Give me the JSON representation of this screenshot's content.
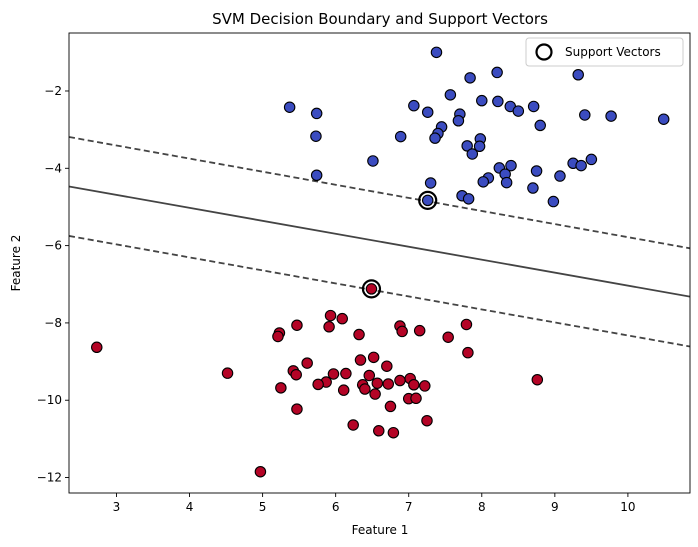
{
  "chart_data": {
    "type": "scatter",
    "title": "SVM Decision Boundary and Support Vectors",
    "xlabel": "Feature 1",
    "ylabel": "Feature 2",
    "xlim": [
      2.35,
      10.85
    ],
    "ylim": [
      -12.4,
      -0.5
    ],
    "xticks": [
      3,
      4,
      5,
      6,
      7,
      8,
      9,
      10
    ],
    "yticks": [
      -2,
      -4,
      -6,
      -8,
      -10,
      -12
    ],
    "grid": false,
    "legend": {
      "entries": [
        "Support Vectors"
      ],
      "placement": "top-right"
    },
    "colors": {
      "class_top": "#3b4cc0",
      "class_bottom": "#b40426",
      "boundary": "#444444",
      "edge": "#000000"
    },
    "boundary": {
      "x": [
        2.35,
        10.85
      ],
      "y": [
        -4.47,
        -7.32
      ]
    },
    "margin_upper": {
      "x": [
        2.35,
        10.85
      ],
      "y": [
        -3.19,
        -6.07
      ]
    },
    "margin_lower": {
      "x": [
        2.35,
        10.85
      ],
      "y": [
        -5.75,
        -8.61
      ]
    },
    "series": [
      {
        "color": "#3b4cc0",
        "points": [
          [
            7.38,
            -1.0
          ],
          [
            8.21,
            -1.52
          ],
          [
            9.32,
            -1.58
          ],
          [
            7.84,
            -1.66
          ],
          [
            7.57,
            -2.1
          ],
          [
            7.07,
            -2.38
          ],
          [
            8.0,
            -2.25
          ],
          [
            8.22,
            -2.27
          ],
          [
            8.39,
            -2.4
          ],
          [
            8.5,
            -2.52
          ],
          [
            8.71,
            -2.4
          ],
          [
            7.26,
            -2.55
          ],
          [
            7.7,
            -2.6
          ],
          [
            5.37,
            -2.42
          ],
          [
            5.74,
            -2.58
          ],
          [
            9.41,
            -2.62
          ],
          [
            9.77,
            -2.65
          ],
          [
            10.49,
            -2.73
          ],
          [
            7.68,
            -2.77
          ],
          [
            7.45,
            -2.93
          ],
          [
            8.8,
            -2.89
          ],
          [
            5.73,
            -3.17
          ],
          [
            6.89,
            -3.18
          ],
          [
            7.4,
            -3.1
          ],
          [
            7.36,
            -3.22
          ],
          [
            7.98,
            -3.24
          ],
          [
            7.97,
            -3.43
          ],
          [
            7.8,
            -3.42
          ],
          [
            7.87,
            -3.63
          ],
          [
            8.24,
            -3.99
          ],
          [
            8.32,
            -4.15
          ],
          [
            8.4,
            -3.93
          ],
          [
            8.75,
            -4.07
          ],
          [
            8.7,
            -4.51
          ],
          [
            9.25,
            -3.87
          ],
          [
            9.36,
            -3.93
          ],
          [
            9.5,
            -3.77
          ],
          [
            9.07,
            -4.2
          ],
          [
            8.09,
            -4.25
          ],
          [
            8.02,
            -4.35
          ],
          [
            8.34,
            -4.37
          ],
          [
            6.51,
            -3.81
          ],
          [
            5.74,
            -4.18
          ],
          [
            7.3,
            -4.38
          ],
          [
            7.73,
            -4.71
          ],
          [
            7.82,
            -4.79
          ],
          [
            8.98,
            -4.86
          ],
          [
            7.26,
            -4.83
          ]
        ]
      },
      {
        "color": "#b40426",
        "points": [
          [
            6.49,
            -7.12
          ],
          [
            5.93,
            -7.81
          ],
          [
            6.09,
            -7.89
          ],
          [
            5.91,
            -8.1
          ],
          [
            5.23,
            -8.26
          ],
          [
            5.21,
            -8.35
          ],
          [
            5.47,
            -8.06
          ],
          [
            6.32,
            -8.3
          ],
          [
            6.88,
            -8.08
          ],
          [
            6.91,
            -8.22
          ],
          [
            7.15,
            -8.2
          ],
          [
            7.79,
            -8.04
          ],
          [
            7.54,
            -8.37
          ],
          [
            7.81,
            -8.77
          ],
          [
            6.34,
            -8.96
          ],
          [
            6.52,
            -8.89
          ],
          [
            5.61,
            -9.04
          ],
          [
            2.73,
            -8.63
          ],
          [
            4.52,
            -9.3
          ],
          [
            5.42,
            -9.24
          ],
          [
            5.46,
            -9.34
          ],
          [
            5.97,
            -9.32
          ],
          [
            6.14,
            -9.31
          ],
          [
            6.46,
            -9.36
          ],
          [
            5.87,
            -9.53
          ],
          [
            5.76,
            -9.59
          ],
          [
            6.37,
            -9.6
          ],
          [
            6.57,
            -9.56
          ],
          [
            6.72,
            -9.58
          ],
          [
            6.88,
            -9.49
          ],
          [
            7.02,
            -9.44
          ],
          [
            7.07,
            -9.6
          ],
          [
            7.22,
            -9.63
          ],
          [
            6.7,
            -9.12
          ],
          [
            5.25,
            -9.68
          ],
          [
            6.11,
            -9.74
          ],
          [
            6.4,
            -9.71
          ],
          [
            6.54,
            -9.84
          ],
          [
            7.0,
            -9.96
          ],
          [
            7.1,
            -9.95
          ],
          [
            8.76,
            -9.47
          ],
          [
            5.47,
            -10.23
          ],
          [
            6.75,
            -10.16
          ],
          [
            6.24,
            -10.64
          ],
          [
            6.59,
            -10.79
          ],
          [
            6.79,
            -10.84
          ],
          [
            7.25,
            -10.53
          ],
          [
            4.97,
            -11.85
          ]
        ]
      }
    ],
    "support_vectors": [
      [
        7.26,
        -4.83
      ],
      [
        6.49,
        -7.12
      ]
    ]
  }
}
